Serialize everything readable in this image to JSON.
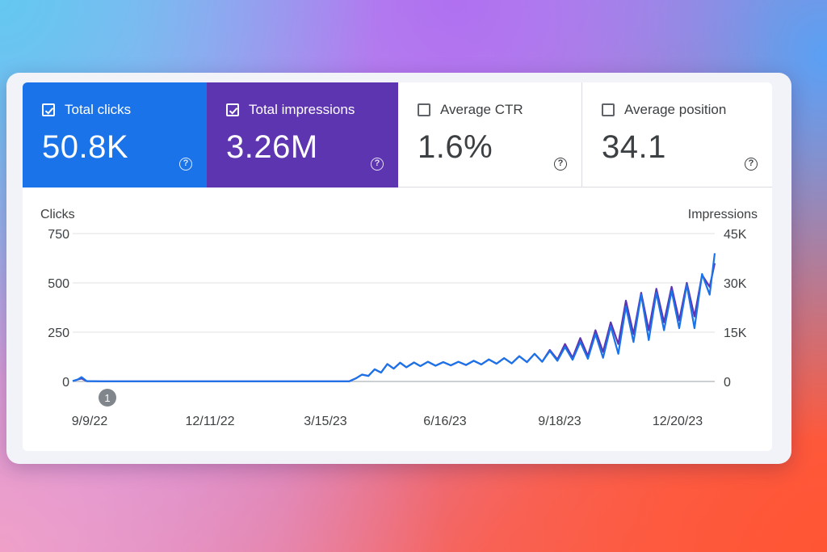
{
  "metrics": [
    {
      "label": "Total clicks",
      "value": "50.8K",
      "checked": true,
      "color": "#1a73e8"
    },
    {
      "label": "Total impressions",
      "value": "3.26M",
      "checked": true,
      "color": "#5e35b1"
    },
    {
      "label": "Average CTR",
      "value": "1.6%",
      "checked": false
    },
    {
      "label": "Average position",
      "value": "34.1",
      "checked": false
    }
  ],
  "help_glyph": "?",
  "chart_data": {
    "type": "line",
    "left_axis_label": "Clicks",
    "right_axis_label": "Impressions",
    "y_left_ticks": [
      "0",
      "250",
      "500",
      "750"
    ],
    "y_right_ticks": [
      "0",
      "15K",
      "30K",
      "45K"
    ],
    "y_left_range": [
      0,
      750
    ],
    "y_right_range": [
      0,
      45000
    ],
    "x_ticks": [
      "9/9/22",
      "12/11/22",
      "3/15/23",
      "6/16/23",
      "9/18/23",
      "12/20/23"
    ],
    "annotation": "1",
    "grid": true,
    "series": [
      {
        "name": "Clicks",
        "color": "#1a73e8",
        "axis": "left",
        "points": [
          [
            "2022-09-09",
            2
          ],
          [
            "2022-09-13",
            10
          ],
          [
            "2022-09-16",
            22
          ],
          [
            "2022-09-20",
            2
          ],
          [
            "2022-10-01",
            1
          ],
          [
            "2022-10-15",
            1
          ],
          [
            "2022-11-01",
            1
          ],
          [
            "2022-11-15",
            1
          ],
          [
            "2022-12-01",
            1
          ],
          [
            "2022-12-15",
            1
          ],
          [
            "2023-01-01",
            1
          ],
          [
            "2023-01-15",
            1
          ],
          [
            "2023-02-01",
            1
          ],
          [
            "2023-02-15",
            1
          ],
          [
            "2023-03-01",
            1
          ],
          [
            "2023-03-15",
            1
          ],
          [
            "2023-04-01",
            1
          ],
          [
            "2023-04-15",
            1
          ],
          [
            "2023-04-20",
            15
          ],
          [
            "2023-04-25",
            35
          ],
          [
            "2023-04-30",
            28
          ],
          [
            "2023-05-05",
            62
          ],
          [
            "2023-05-10",
            45
          ],
          [
            "2023-05-15",
            88
          ],
          [
            "2023-05-20",
            65
          ],
          [
            "2023-05-25",
            95
          ],
          [
            "2023-05-30",
            72
          ],
          [
            "2023-06-05",
            96
          ],
          [
            "2023-06-10",
            78
          ],
          [
            "2023-06-16",
            100
          ],
          [
            "2023-06-22",
            80
          ],
          [
            "2023-06-28",
            98
          ],
          [
            "2023-07-04",
            82
          ],
          [
            "2023-07-10",
            100
          ],
          [
            "2023-07-16",
            84
          ],
          [
            "2023-07-22",
            105
          ],
          [
            "2023-07-28",
            86
          ],
          [
            "2023-08-03",
            112
          ],
          [
            "2023-08-09",
            90
          ],
          [
            "2023-08-15",
            118
          ],
          [
            "2023-08-21",
            92
          ],
          [
            "2023-08-27",
            128
          ],
          [
            "2023-09-02",
            98
          ],
          [
            "2023-09-08",
            140
          ],
          [
            "2023-09-14",
            100
          ],
          [
            "2023-09-20",
            155
          ],
          [
            "2023-09-26",
            105
          ],
          [
            "2023-10-02",
            175
          ],
          [
            "2023-10-08",
            110
          ],
          [
            "2023-10-14",
            200
          ],
          [
            "2023-10-20",
            115
          ],
          [
            "2023-10-26",
            240
          ],
          [
            "2023-11-01",
            120
          ],
          [
            "2023-11-07",
            280
          ],
          [
            "2023-11-13",
            140
          ],
          [
            "2023-11-19",
            380
          ],
          [
            "2023-11-25",
            200
          ],
          [
            "2023-12-01",
            440
          ],
          [
            "2023-12-07",
            210
          ],
          [
            "2023-12-13",
            450
          ],
          [
            "2023-12-19",
            260
          ],
          [
            "2023-12-25",
            460
          ],
          [
            "2023-12-31",
            270
          ],
          [
            "2024-01-06",
            490
          ],
          [
            "2024-01-12",
            270
          ],
          [
            "2024-01-18",
            545
          ],
          [
            "2024-01-24",
            440
          ],
          [
            "2024-01-28",
            650
          ]
        ]
      },
      {
        "name": "Impressions",
        "color": "#5e35b1",
        "axis": "right",
        "points": [
          [
            "2022-09-09",
            120
          ],
          [
            "2022-09-13",
            600
          ],
          [
            "2022-09-16",
            900
          ],
          [
            "2022-09-20",
            100
          ],
          [
            "2022-10-01",
            60
          ],
          [
            "2022-10-15",
            60
          ],
          [
            "2022-11-01",
            60
          ],
          [
            "2022-11-15",
            60
          ],
          [
            "2022-12-01",
            60
          ],
          [
            "2022-12-15",
            60
          ],
          [
            "2023-01-01",
            60
          ],
          [
            "2023-01-15",
            60
          ],
          [
            "2023-02-01",
            60
          ],
          [
            "2023-02-15",
            60
          ],
          [
            "2023-03-01",
            60
          ],
          [
            "2023-03-15",
            60
          ],
          [
            "2023-04-01",
            60
          ],
          [
            "2023-04-15",
            60
          ],
          [
            "2023-04-20",
            900
          ],
          [
            "2023-04-25",
            2100
          ],
          [
            "2023-04-30",
            1700
          ],
          [
            "2023-05-05",
            3700
          ],
          [
            "2023-05-10",
            2700
          ],
          [
            "2023-05-15",
            5300
          ],
          [
            "2023-05-20",
            3900
          ],
          [
            "2023-05-25",
            5700
          ],
          [
            "2023-05-30",
            4300
          ],
          [
            "2023-06-05",
            5800
          ],
          [
            "2023-06-10",
            4700
          ],
          [
            "2023-06-16",
            6000
          ],
          [
            "2023-06-22",
            4800
          ],
          [
            "2023-06-28",
            5900
          ],
          [
            "2023-07-04",
            4900
          ],
          [
            "2023-07-10",
            6000
          ],
          [
            "2023-07-16",
            5000
          ],
          [
            "2023-07-22",
            6300
          ],
          [
            "2023-07-28",
            5200
          ],
          [
            "2023-08-03",
            6700
          ],
          [
            "2023-08-09",
            5400
          ],
          [
            "2023-08-15",
            7100
          ],
          [
            "2023-08-21",
            5500
          ],
          [
            "2023-08-27",
            7700
          ],
          [
            "2023-09-02",
            5900
          ],
          [
            "2023-09-08",
            8400
          ],
          [
            "2023-09-14",
            6000
          ],
          [
            "2023-09-20",
            9600
          ],
          [
            "2023-09-26",
            6700
          ],
          [
            "2023-10-02",
            11400
          ],
          [
            "2023-10-08",
            7200
          ],
          [
            "2023-10-14",
            13200
          ],
          [
            "2023-10-20",
            7800
          ],
          [
            "2023-10-26",
            15600
          ],
          [
            "2023-11-01",
            9000
          ],
          [
            "2023-11-07",
            18000
          ],
          [
            "2023-11-13",
            11400
          ],
          [
            "2023-11-19",
            24600
          ],
          [
            "2023-11-25",
            14400
          ],
          [
            "2023-12-01",
            27000
          ],
          [
            "2023-12-07",
            15600
          ],
          [
            "2023-12-13",
            28200
          ],
          [
            "2023-12-19",
            18000
          ],
          [
            "2023-12-25",
            28800
          ],
          [
            "2023-12-31",
            18600
          ],
          [
            "2024-01-06",
            30000
          ],
          [
            "2024-01-12",
            19800
          ],
          [
            "2024-01-18",
            32400
          ],
          [
            "2024-01-24",
            28800
          ],
          [
            "2024-01-28",
            36000
          ]
        ]
      }
    ]
  }
}
